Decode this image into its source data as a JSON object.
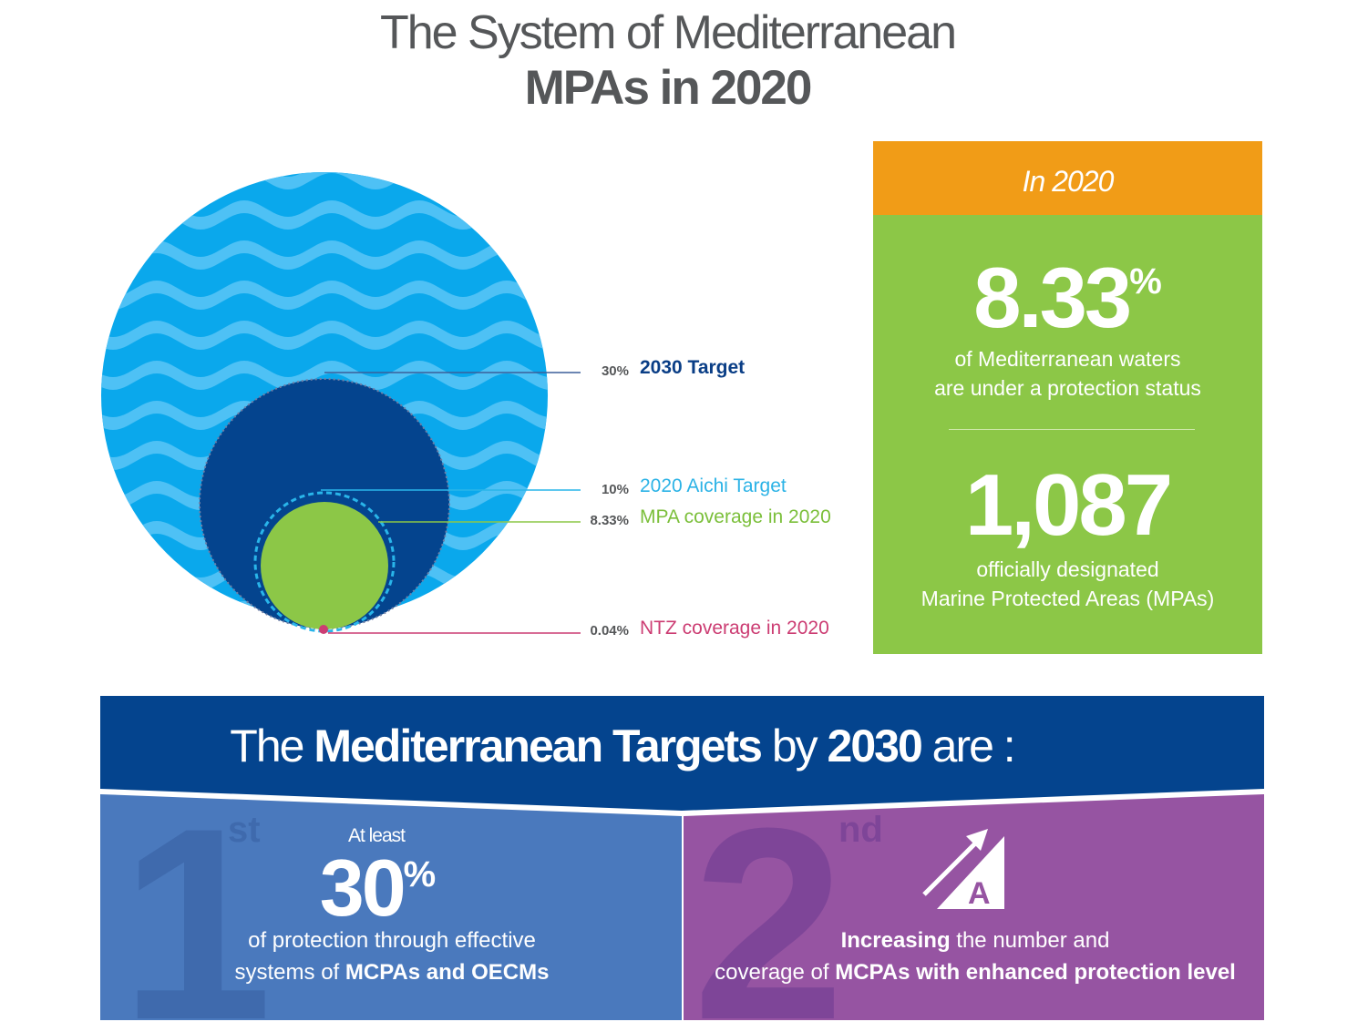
{
  "title": {
    "line1": "The System of Mediterranean",
    "line2": "MPAs in 2020"
  },
  "colors": {
    "ocean": "#0aa8ec",
    "wave": "#4ec1f5",
    "target_2030": "#04448e",
    "aichi": "#29b5ea",
    "mpa": "#8cc747",
    "ntz": "#cc3d73",
    "orange": "#f19c17",
    "panel1": "#4a79bd",
    "panel2": "#9654a2"
  },
  "diagram_labels": [
    {
      "value": "30%",
      "label": "2030 Target",
      "color": "#0a3e86",
      "bold": true
    },
    {
      "value": "10%",
      "label": "2020 Aichi Target",
      "color": "#2cb3e6",
      "bold": false
    },
    {
      "value": "8.33%",
      "label": "MPA coverage in 2020",
      "color": "#7bbf3a",
      "bold": false
    },
    {
      "value": "0.04%",
      "label": "NTZ coverage in 2020",
      "color": "#cc3d73",
      "bold": false
    }
  ],
  "stats": {
    "header": "In 2020",
    "stat1_value": "8.33",
    "stat1_unit": "%",
    "stat1_line1": "of Mediterranean waters",
    "stat1_line2": "are under a protection status",
    "stat2_value": "1,087",
    "stat2_line1": "officially designated",
    "stat2_line2": "Marine Protected Areas (MPAs)"
  },
  "targets": {
    "title_pre": "The ",
    "title_bold1": "Mediterranean Targets",
    "title_mid": " by ",
    "title_bold2": "2030",
    "title_post": " are :",
    "t1_number": "1",
    "t1_suffix": "st",
    "t1_atleast": "At least",
    "t1_value": "30",
    "t1_unit": "%",
    "t1_desc_line1": "of protection through effective",
    "t1_desc_line2_pre": "systems of ",
    "t1_desc_line2_bold": "MCPAs and OECMs",
    "t2_number": "2",
    "t2_suffix": "nd",
    "t2_icon_letter": "A",
    "t2_desc_line1_bold": "Increasing",
    "t2_desc_line1_rest": " the number and",
    "t2_desc_line2_pre": "coverage of ",
    "t2_desc_line2_bold": "MCPAs with enhanced protection level"
  }
}
